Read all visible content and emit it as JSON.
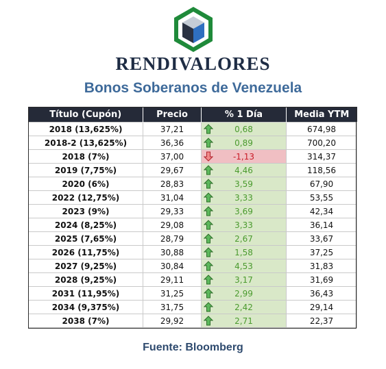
{
  "brand": {
    "name": "RENDIVALORES"
  },
  "title": "Bonos Soberanos de Venezuela",
  "table": {
    "headers": [
      "Título (Cupón)",
      "Precio",
      "% 1 Día",
      "Media YTM"
    ],
    "rows": [
      {
        "name": "2018 (13,625%)",
        "price": "37,21",
        "change": "0,68",
        "dir": "up",
        "ytm": "674,98"
      },
      {
        "name": "2018-2 (13,625%)",
        "price": "36,36",
        "change": "0,89",
        "dir": "up",
        "ytm": "700,20"
      },
      {
        "name": "2018 (7%)",
        "price": "37,00",
        "change": "-1,13",
        "dir": "down",
        "ytm": "314,37"
      },
      {
        "name": "2019 (7,75%)",
        "price": "29,67",
        "change": "4,46",
        "dir": "up",
        "ytm": "118,56"
      },
      {
        "name": "2020 (6%)",
        "price": "28,83",
        "change": "3,59",
        "dir": "up",
        "ytm": "67,90"
      },
      {
        "name": "2022 (12,75%)",
        "price": "31,04",
        "change": "3,33",
        "dir": "up",
        "ytm": "53,55"
      },
      {
        "name": "2023 (9%)",
        "price": "29,33",
        "change": "3,69",
        "dir": "up",
        "ytm": "42,34"
      },
      {
        "name": "2024 (8,25%)",
        "price": "29,08",
        "change": "3,33",
        "dir": "up",
        "ytm": "36,14"
      },
      {
        "name": "2025 (7,65%)",
        "price": "28,79",
        "change": "2,67",
        "dir": "up",
        "ytm": "33,67"
      },
      {
        "name": "2026 (11,75%)",
        "price": "30,88",
        "change": "1,58",
        "dir": "up",
        "ytm": "37,25"
      },
      {
        "name": "2027 (9,25%)",
        "price": "30,84",
        "change": "4,53",
        "dir": "up",
        "ytm": "31,83"
      },
      {
        "name": "2028 (9,25%)",
        "price": "29,11",
        "change": "3,17",
        "dir": "up",
        "ytm": "31,69"
      },
      {
        "name": "2031 (11,95%)",
        "price": "31,25",
        "change": "2,99",
        "dir": "up",
        "ytm": "36,43"
      },
      {
        "name": "2034 (9,375%)",
        "price": "31,75",
        "change": "2,42",
        "dir": "up",
        "ytm": "29,14"
      },
      {
        "name": "2038 (7%)",
        "price": "29,92",
        "change": "2,71",
        "dir": "up",
        "ytm": "22,37"
      }
    ]
  },
  "source": "Fuente: Bloomberg",
  "colors": {
    "up_bg": "#d9e8c8",
    "up_text": "#4a9a2e",
    "down_bg": "#f0bfc3",
    "down_text": "#c81a26",
    "header_bg": "#252a38",
    "title": "#3e6a9a"
  }
}
